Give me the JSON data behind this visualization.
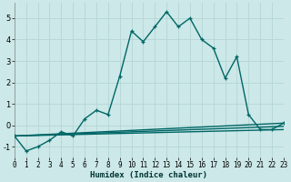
{
  "xlabel": "Humidex (Indice chaleur)",
  "bg_color": "#cce8e8",
  "grid_color": "#b8d8d8",
  "line_color": "#006666",
  "xlim": [
    0,
    23
  ],
  "ylim": [
    -1.5,
    5.7
  ],
  "yticks": [
    -1,
    0,
    1,
    2,
    3,
    4,
    5
  ],
  "xticks": [
    0,
    1,
    2,
    3,
    4,
    5,
    6,
    7,
    8,
    9,
    10,
    11,
    12,
    13,
    14,
    15,
    16,
    17,
    18,
    19,
    20,
    21,
    22,
    23
  ],
  "series": [
    {
      "x": [
        0,
        1,
        2,
        3,
        4,
        5,
        6,
        7,
        8,
        9,
        10,
        11,
        12,
        13,
        14,
        15,
        16,
        17,
        18,
        19,
        20,
        21,
        22,
        23
      ],
      "y": [
        -0.5,
        -1.2,
        -1.0,
        -0.7,
        -0.3,
        -0.5,
        0.3,
        0.7,
        0.5,
        2.3,
        4.4,
        3.9,
        4.6,
        5.3,
        4.6,
        5.0,
        4.0,
        3.6,
        2.2,
        3.2,
        0.5,
        -0.2,
        -0.2,
        0.1
      ],
      "marker": true,
      "lw": 1.0
    },
    {
      "x": [
        0,
        23
      ],
      "y": [
        -0.5,
        0.1
      ],
      "marker": false,
      "lw": 1.0
    },
    {
      "x": [
        0,
        23
      ],
      "y": [
        -0.5,
        -0.05
      ],
      "marker": false,
      "lw": 1.0
    },
    {
      "x": [
        0,
        23
      ],
      "y": [
        -0.5,
        -0.2
      ],
      "marker": false,
      "lw": 1.0
    }
  ]
}
